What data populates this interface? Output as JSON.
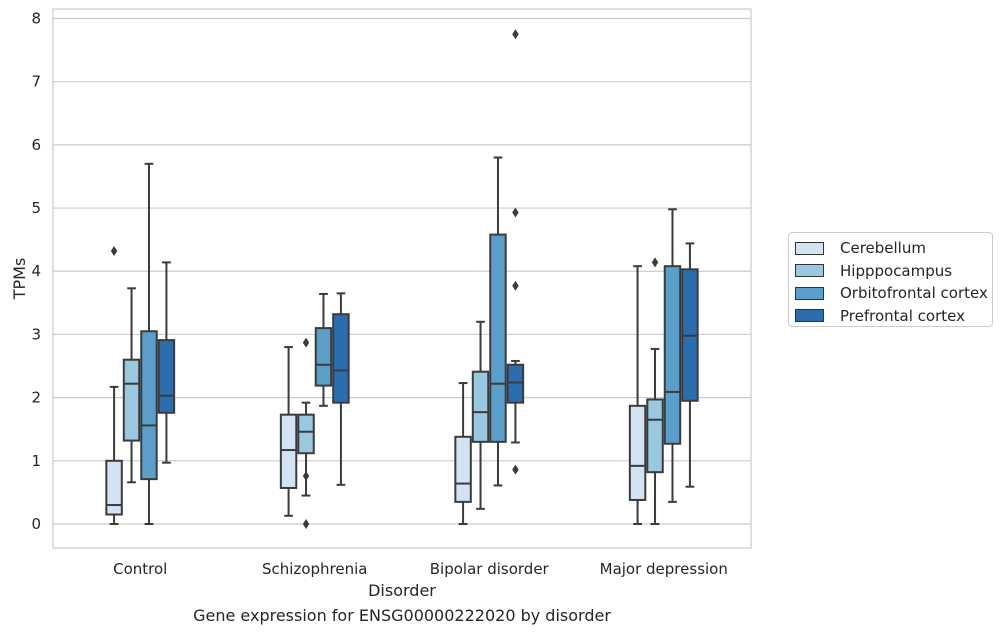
{
  "caption": "Gene expression for ENSG00000222020 by disorder",
  "chart_data": {
    "type": "box",
    "xlabel": "Disorder",
    "ylabel": "TPMs",
    "ylim": [
      -0.38,
      8.15
    ],
    "yticks": [
      0,
      1,
      2,
      3,
      4,
      5,
      6,
      7,
      8
    ],
    "grid": true,
    "legend_position": "right",
    "categories": [
      "Control",
      "Schizophrenia",
      "Bipolar disorder",
      "Major depression"
    ],
    "series": [
      {
        "name": "Cerebellum",
        "color": "#d3e3f3",
        "boxes": [
          {
            "whisker_low": 0.0,
            "q1": 0.15,
            "median": 0.3,
            "q3": 1.0,
            "whisker_high": 2.17,
            "outliers": [
              4.32
            ]
          },
          {
            "whisker_low": 0.13,
            "q1": 0.57,
            "median": 1.17,
            "q3": 1.73,
            "whisker_high": 2.8,
            "outliers": []
          },
          {
            "whisker_low": 0.0,
            "q1": 0.35,
            "median": 0.64,
            "q3": 1.38,
            "whisker_high": 2.23,
            "outliers": []
          },
          {
            "whisker_low": 0.0,
            "q1": 0.38,
            "median": 0.92,
            "q3": 1.87,
            "whisker_high": 4.08,
            "outliers": []
          }
        ]
      },
      {
        "name": "Hipppocampus",
        "color": "#9ac8e0",
        "boxes": [
          {
            "whisker_low": 0.66,
            "q1": 1.32,
            "median": 2.22,
            "q3": 2.6,
            "whisker_high": 3.73,
            "outliers": []
          },
          {
            "whisker_low": 0.45,
            "q1": 1.12,
            "median": 1.46,
            "q3": 1.73,
            "whisker_high": 1.92,
            "outliers": [
              2.87,
              0.76,
              0.0
            ]
          },
          {
            "whisker_low": 0.24,
            "q1": 1.3,
            "median": 1.77,
            "q3": 2.41,
            "whisker_high": 3.2,
            "outliers": []
          },
          {
            "whisker_low": 0.0,
            "q1": 0.82,
            "median": 1.65,
            "q3": 1.97,
            "whisker_high": 2.77,
            "outliers": [
              4.14
            ]
          }
        ]
      },
      {
        "name": "Orbitofrontal cortex",
        "color": "#5a9fca",
        "boxes": [
          {
            "whisker_low": 0.0,
            "q1": 0.71,
            "median": 1.56,
            "q3": 3.05,
            "whisker_high": 5.7,
            "outliers": []
          },
          {
            "whisker_low": 1.87,
            "q1": 2.19,
            "median": 2.52,
            "q3": 3.1,
            "whisker_high": 3.64,
            "outliers": []
          },
          {
            "whisker_low": 0.61,
            "q1": 1.3,
            "median": 2.22,
            "q3": 4.58,
            "whisker_high": 5.8,
            "outliers": []
          },
          {
            "whisker_low": 0.35,
            "q1": 1.27,
            "median": 2.09,
            "q3": 4.08,
            "whisker_high": 4.98,
            "outliers": []
          }
        ]
      },
      {
        "name": "Prefrontal cortex",
        "color": "#2a6eb0",
        "boxes": [
          {
            "whisker_low": 0.97,
            "q1": 1.76,
            "median": 2.03,
            "q3": 2.91,
            "whisker_high": 4.14,
            "outliers": []
          },
          {
            "whisker_low": 0.62,
            "q1": 1.92,
            "median": 2.43,
            "q3": 3.32,
            "whisker_high": 3.65,
            "outliers": []
          },
          {
            "whisker_low": 1.29,
            "q1": 1.92,
            "median": 2.24,
            "q3": 2.52,
            "whisker_high": 2.58,
            "outliers": [
              7.75,
              4.93,
              3.77,
              0.86
            ]
          },
          {
            "whisker_low": 0.59,
            "q1": 1.95,
            "median": 2.98,
            "q3": 4.03,
            "whisker_high": 4.44,
            "outliers": []
          }
        ]
      }
    ]
  }
}
